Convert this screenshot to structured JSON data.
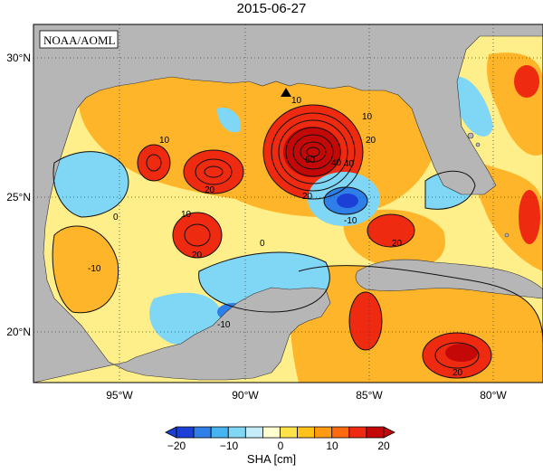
{
  "title": "2015-06-27",
  "credit": "NOAA/AOML",
  "lat_labels": [
    "30°N",
    "25°N",
    "20°N"
  ],
  "lon_labels": [
    "95°W",
    "90°W",
    "85°W",
    "80°W"
  ],
  "contour_labels": [
    "10",
    "10",
    "10",
    "10",
    "20",
    "20",
    "20",
    "20",
    "20",
    "40",
    "40",
    "60",
    "0",
    "0",
    "-10",
    "-10",
    "-10",
    "20"
  ],
  "colorbar": {
    "ticks": [
      "−20",
      "−10",
      "0",
      "10",
      "20"
    ],
    "colors": [
      "#1c3fd6",
      "#2f7fe8",
      "#46b4f0",
      "#7fd6f5",
      "#c4ecf9",
      "#ffffd0",
      "#ffe24a",
      "#ffc21a",
      "#ff9a12",
      "#ff6a10",
      "#f02a10",
      "#c40808"
    ],
    "label": "SHA [cm]"
  },
  "colors": {
    "land": "#b6b6b6",
    "ocean_neutral": "#ffef8a",
    "ocean_warm": "#ffb52a",
    "ocean_hot": "#ee2a10",
    "ocean_cold": "#7fd6f5",
    "ocean_deep_cold": "#2f7fe8"
  },
  "icons": {
    "marker": "triangle-marker-icon"
  }
}
